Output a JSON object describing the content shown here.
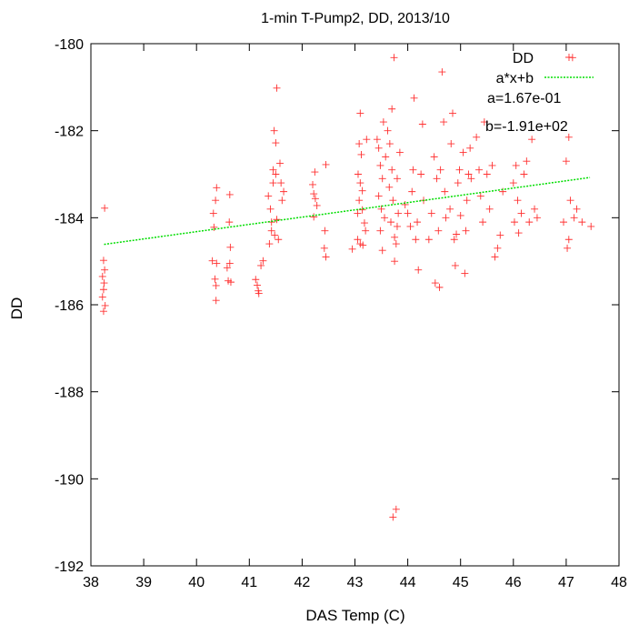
{
  "chart_data": {
    "type": "scatter",
    "title": "1-min T-Pump2, DD, 2013/10",
    "xlabel": "DAS Temp (C)",
    "ylabel": "DD",
    "xlim": [
      38,
      48
    ],
    "ylim": [
      -192,
      -180
    ],
    "xticks": [
      "38",
      "39",
      "40",
      "41",
      "42",
      "43",
      "44",
      "45",
      "46",
      "47",
      "48"
    ],
    "yticks": [
      "-180",
      "-182",
      "-184",
      "-186",
      "-188",
      "-190",
      "-192"
    ],
    "grid": false,
    "legend_position": "top-right",
    "colors": {
      "points": "#ff3030",
      "fit": "#00dd00"
    },
    "series": [
      {
        "name": "DD",
        "marker": "plus",
        "points": [
          [
            38.26,
            -183.78
          ],
          [
            38.24,
            -184.98
          ],
          [
            38.22,
            -185.35
          ],
          [
            38.25,
            -185.5
          ],
          [
            38.24,
            -185.65
          ],
          [
            38.22,
            -185.82
          ],
          [
            38.24,
            -186.15
          ],
          [
            38.26,
            -185.2
          ],
          [
            38.27,
            -186.02
          ],
          [
            40.33,
            -184.22
          ],
          [
            40.38,
            -183.31
          ],
          [
            40.36,
            -183.6
          ],
          [
            40.32,
            -183.9
          ],
          [
            40.3,
            -184.99
          ],
          [
            40.38,
            -185.05
          ],
          [
            40.35,
            -185.41
          ],
          [
            40.37,
            -185.56
          ],
          [
            40.37,
            -185.9
          ],
          [
            40.63,
            -183.47
          ],
          [
            40.62,
            -184.1
          ],
          [
            40.64,
            -184.68
          ],
          [
            40.63,
            -185.05
          ],
          [
            40.58,
            -185.15
          ],
          [
            40.6,
            -185.45
          ],
          [
            40.65,
            -185.48
          ],
          [
            41.12,
            -185.42
          ],
          [
            41.15,
            -185.55
          ],
          [
            41.17,
            -185.68
          ],
          [
            41.18,
            -185.74
          ],
          [
            41.22,
            -185.1
          ],
          [
            41.26,
            -184.99
          ],
          [
            41.36,
            -183.5
          ],
          [
            41.4,
            -183.8
          ],
          [
            41.42,
            -184.3
          ],
          [
            41.38,
            -184.6
          ],
          [
            41.45,
            -182.9
          ],
          [
            41.47,
            -182.0
          ],
          [
            41.5,
            -182.28
          ],
          [
            41.52,
            -181.02
          ],
          [
            41.45,
            -183.2
          ],
          [
            41.5,
            -183.0
          ],
          [
            41.48,
            -184.4
          ],
          [
            41.58,
            -182.75
          ],
          [
            41.6,
            -183.2
          ],
          [
            41.62,
            -183.6
          ],
          [
            41.55,
            -184.5
          ],
          [
            41.52,
            -184.04
          ],
          [
            41.65,
            -183.4
          ],
          [
            41.42,
            -184.1
          ],
          [
            42.2,
            -183.24
          ],
          [
            42.22,
            -183.45
          ],
          [
            42.25,
            -183.56
          ],
          [
            42.24,
            -182.95
          ],
          [
            42.22,
            -183.98
          ],
          [
            42.28,
            -183.72
          ],
          [
            42.42,
            -184.7
          ],
          [
            42.45,
            -184.9
          ],
          [
            42.45,
            -182.78
          ],
          [
            42.43,
            -184.3
          ],
          [
            42.95,
            -184.72
          ],
          [
            43.05,
            -184.5
          ],
          [
            43.1,
            -184.6
          ],
          [
            43.08,
            -182.3
          ],
          [
            43.12,
            -182.55
          ],
          [
            43.06,
            -183.0
          ],
          [
            43.1,
            -183.2
          ],
          [
            43.14,
            -183.38
          ],
          [
            43.08,
            -183.6
          ],
          [
            43.14,
            -183.82
          ],
          [
            43.05,
            -183.9
          ],
          [
            43.18,
            -184.12
          ],
          [
            43.2,
            -184.3
          ],
          [
            43.15,
            -184.63
          ],
          [
            43.22,
            -182.2
          ],
          [
            43.1,
            -181.6
          ],
          [
            43.42,
            -182.2
          ],
          [
            43.45,
            -182.4
          ],
          [
            43.48,
            -182.8
          ],
          [
            43.52,
            -183.1
          ],
          [
            43.45,
            -183.5
          ],
          [
            43.5,
            -183.8
          ],
          [
            43.56,
            -184.0
          ],
          [
            43.48,
            -184.3
          ],
          [
            43.52,
            -184.75
          ],
          [
            43.54,
            -181.8
          ],
          [
            43.58,
            -182.6
          ],
          [
            43.62,
            -182.0
          ],
          [
            43.66,
            -182.3
          ],
          [
            43.7,
            -182.9
          ],
          [
            43.65,
            -183.3
          ],
          [
            43.72,
            -183.6
          ],
          [
            43.68,
            -184.1
          ],
          [
            43.75,
            -184.45
          ],
          [
            43.78,
            -184.6
          ],
          [
            43.75,
            -185.0
          ],
          [
            43.74,
            -180.32
          ],
          [
            43.7,
            -181.5
          ],
          [
            43.82,
            -183.9
          ],
          [
            43.8,
            -184.2
          ],
          [
            43.8,
            -183.1
          ],
          [
            43.85,
            -182.5
          ],
          [
            43.72,
            -190.88
          ],
          [
            43.78,
            -190.7
          ],
          [
            43.95,
            -183.7
          ],
          [
            44.0,
            -183.9
          ],
          [
            44.05,
            -184.2
          ],
          [
            44.1,
            -182.9
          ],
          [
            44.12,
            -181.25
          ],
          [
            44.08,
            -183.4
          ],
          [
            44.15,
            -184.5
          ],
          [
            44.2,
            -185.2
          ],
          [
            44.18,
            -184.1
          ],
          [
            44.25,
            -183.0
          ],
          [
            44.28,
            -181.85
          ],
          [
            44.3,
            -183.6
          ],
          [
            44.4,
            -184.5
          ],
          [
            44.45,
            -183.9
          ],
          [
            44.5,
            -182.6
          ],
          [
            44.55,
            -183.1
          ],
          [
            44.52,
            -185.5
          ],
          [
            44.6,
            -185.6
          ],
          [
            44.58,
            -184.3
          ],
          [
            44.62,
            -182.9
          ],
          [
            44.65,
            -180.65
          ],
          [
            44.68,
            -181.8
          ],
          [
            44.7,
            -183.4
          ],
          [
            44.72,
            -184.0
          ],
          [
            44.8,
            -183.8
          ],
          [
            44.82,
            -182.3
          ],
          [
            44.85,
            -181.6
          ],
          [
            44.88,
            -184.5
          ],
          [
            44.9,
            -185.1
          ],
          [
            44.92,
            -184.38
          ],
          [
            44.95,
            -183.2
          ],
          [
            44.98,
            -182.9
          ],
          [
            45.0,
            -183.95
          ],
          [
            45.05,
            -182.5
          ],
          [
            45.08,
            -185.28
          ],
          [
            45.1,
            -184.3
          ],
          [
            45.12,
            -183.6
          ],
          [
            45.15,
            -183.0
          ],
          [
            45.18,
            -182.4
          ],
          [
            45.2,
            -183.1
          ],
          [
            45.3,
            -182.15
          ],
          [
            45.35,
            -182.9
          ],
          [
            45.38,
            -183.5
          ],
          [
            45.42,
            -184.1
          ],
          [
            45.45,
            -181.8
          ],
          [
            45.5,
            -183.0
          ],
          [
            45.55,
            -183.8
          ],
          [
            45.6,
            -182.8
          ],
          [
            45.65,
            -184.9
          ],
          [
            45.7,
            -184.7
          ],
          [
            45.75,
            -184.4
          ],
          [
            45.8,
            -183.4
          ],
          [
            46.0,
            -183.2
          ],
          [
            46.02,
            -184.1
          ],
          [
            46.05,
            -182.8
          ],
          [
            46.08,
            -183.6
          ],
          [
            46.1,
            -184.35
          ],
          [
            46.15,
            -183.9
          ],
          [
            46.2,
            -183.0
          ],
          [
            46.25,
            -182.7
          ],
          [
            46.3,
            -184.1
          ],
          [
            46.35,
            -182.2
          ],
          [
            46.4,
            -183.8
          ],
          [
            46.45,
            -184.0
          ],
          [
            46.95,
            -184.1
          ],
          [
            47.0,
            -182.7
          ],
          [
            47.02,
            -184.7
          ],
          [
            47.05,
            -184.5
          ],
          [
            47.08,
            -183.6
          ],
          [
            47.12,
            -180.32
          ],
          [
            47.15,
            -184.0
          ],
          [
            47.2,
            -183.8
          ],
          [
            47.05,
            -182.15
          ],
          [
            47.3,
            -184.1
          ],
          [
            47.47,
            -184.2
          ]
        ]
      },
      {
        "name": "a*x+b",
        "type": "line",
        "x": [
          38.25,
          47.45
        ],
        "a": 0.167,
        "b": -191.0
      }
    ],
    "annotations": [
      "a=1.67e-01",
      "b=-1.91e+02"
    ]
  }
}
